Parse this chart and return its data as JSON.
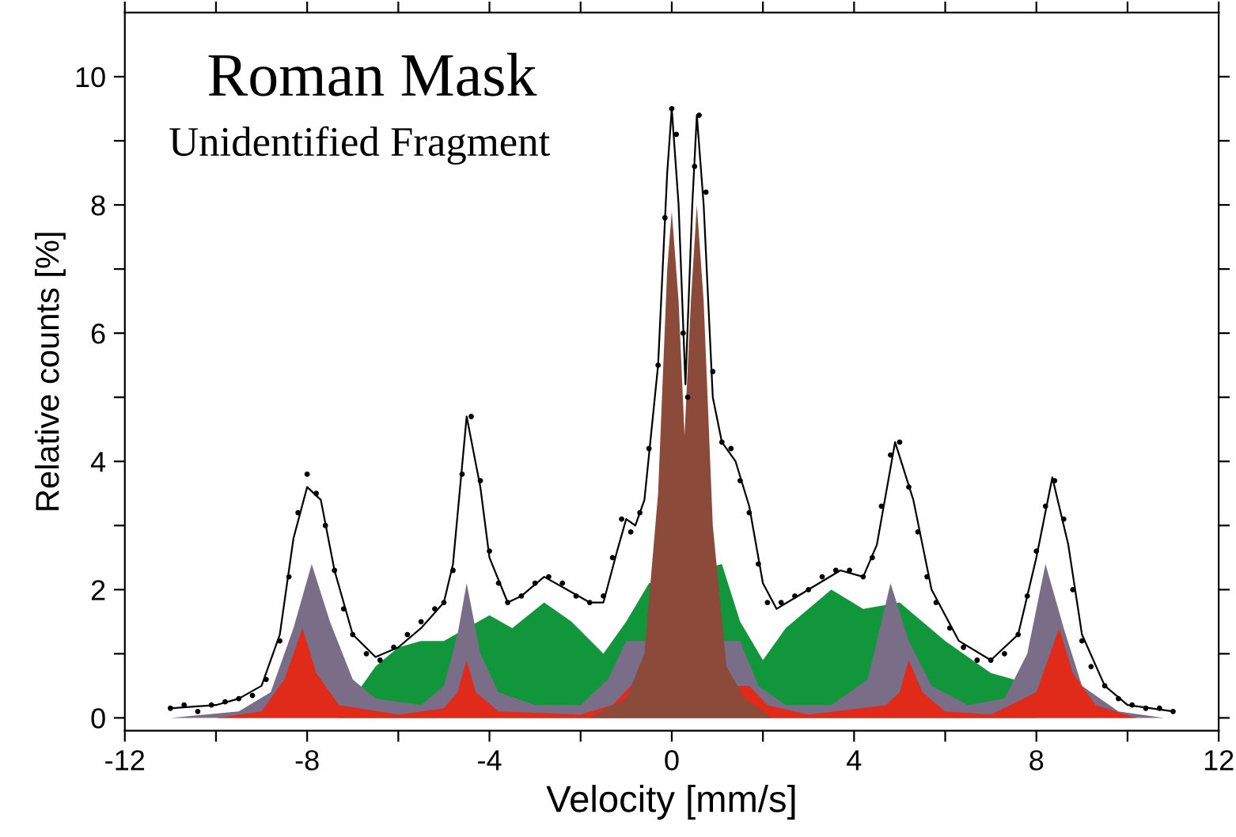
{
  "chart_data": {
    "type": "area",
    "xlabel": "Velocity [mm/s]",
    "ylabel": "Relative counts [%]",
    "annotations": [
      "Roman Mask",
      "Unidentified Fragment"
    ],
    "xlim": [
      -12,
      12
    ],
    "ylim": [
      -0.2,
      11
    ],
    "xticks": [
      -12,
      {
        "value": -10,
        "label": null
      },
      -8,
      {
        "value": -6,
        "label": null
      },
      -4,
      {
        "value": -2,
        "label": null
      },
      0,
      {
        "value": 2,
        "label": null
      },
      4,
      {
        "value": 6,
        "label": null
      },
      8,
      {
        "value": 10,
        "label": null
      },
      12
    ],
    "yticks": [
      0,
      {
        "value": 1,
        "label": null
      },
      2,
      {
        "value": 3,
        "label": null
      },
      4,
      {
        "value": 5,
        "label": null
      },
      6,
      {
        "value": 7,
        "label": null
      },
      8,
      {
        "value": 9,
        "label": null
      },
      10
    ],
    "grid": false,
    "legend": false,
    "series": [
      {
        "color": "#12963c",
        "x": [
          -7.3,
          -6.5,
          -6.0,
          -5.5,
          -5.0,
          -4.0,
          -3.5,
          -2.8,
          -2.2,
          -1.5,
          -1.0,
          -0.5,
          1.1,
          1.5,
          2.0,
          2.5,
          3.5,
          4.2,
          5.0,
          6.0,
          7.0,
          7.5,
          8.0
        ],
        "values": [
          0,
          0.8,
          1.1,
          1.2,
          1.2,
          1.6,
          1.4,
          1.8,
          1.5,
          1.0,
          1.5,
          2.1,
          2.4,
          1.5,
          0.9,
          1.4,
          2.0,
          1.7,
          1.8,
          1.2,
          0.7,
          0.6,
          0
        ]
      },
      {
        "color": "#7a6d88",
        "x": [
          -11.0,
          -9.5,
          -8.8,
          -8.3,
          -7.9,
          -7.5,
          -7.0,
          -6.5,
          -5.5,
          -5.0,
          -4.7,
          -4.5,
          -4.2,
          -3.8,
          -3.0,
          -2.0,
          -1.4,
          -1.0,
          1.5,
          1.9,
          2.5,
          3.5,
          4.3,
          4.8,
          5.2,
          5.7,
          6.5,
          7.3,
          7.8,
          8.2,
          8.6,
          9.0,
          9.8,
          10.8
        ],
        "values": [
          0,
          0.1,
          0.4,
          1.4,
          2.4,
          1.5,
          0.6,
          0.3,
          0.2,
          0.5,
          1.3,
          2.1,
          1.0,
          0.4,
          0.2,
          0.2,
          0.6,
          1.2,
          1.2,
          0.5,
          0.2,
          0.2,
          0.6,
          2.1,
          1.2,
          0.5,
          0.2,
          0.3,
          1.0,
          2.4,
          1.4,
          0.5,
          0.1,
          0
        ]
      },
      {
        "color": "#e02a1a",
        "x": [
          -10.0,
          -9.0,
          -8.5,
          -8.1,
          -7.8,
          -7.3,
          -6.0,
          -5.0,
          -4.7,
          -4.5,
          -4.3,
          -3.8,
          -2.0,
          -1.3,
          -0.9,
          1.7,
          2.1,
          3.0,
          4.7,
          5.0,
          5.2,
          5.5,
          6.0,
          7.0,
          8.0,
          8.5,
          8.8,
          9.3,
          10.2
        ],
        "values": [
          0,
          0.1,
          0.6,
          1.4,
          0.7,
          0.2,
          0.05,
          0.15,
          0.4,
          0.9,
          0.4,
          0.1,
          0.05,
          0.2,
          0.5,
          0.5,
          0.2,
          0.05,
          0.2,
          0.4,
          0.9,
          0.4,
          0.1,
          0.05,
          0.4,
          1.4,
          0.7,
          0.2,
          0
        ]
      },
      {
        "color": "#8b4a3a",
        "x": [
          -1.8,
          -1.0,
          -0.6,
          -0.3,
          -0.1,
          0.0,
          0.15,
          0.28,
          0.42,
          0.55,
          0.7,
          0.9,
          1.2,
          1.6,
          2.2
        ],
        "values": [
          0,
          0.3,
          1.0,
          3.5,
          7.0,
          7.9,
          6.5,
          4.4,
          6.5,
          8.0,
          6.5,
          3.0,
          0.8,
          0.3,
          0
        ]
      },
      {
        "type": "line",
        "color": "#000000",
        "marker": "none",
        "line_style": "solid",
        "x": [
          -11.0,
          -10.0,
          -9.5,
          -9.0,
          -8.6,
          -8.3,
          -8.0,
          -7.7,
          -7.4,
          -7.0,
          -6.5,
          -6.0,
          -5.5,
          -5.0,
          -4.8,
          -4.5,
          -4.2,
          -4.0,
          -3.6,
          -3.3,
          -2.8,
          -2.3,
          -1.8,
          -1.5,
          -1.2,
          -1.0,
          -0.8,
          -0.6,
          -0.3,
          -0.1,
          0.0,
          0.15,
          0.3,
          0.45,
          0.55,
          0.7,
          0.9,
          1.1,
          1.4,
          1.7,
          2.0,
          2.3,
          3.0,
          3.7,
          4.2,
          4.5,
          4.9,
          5.3,
          5.7,
          6.3,
          7.0,
          7.6,
          8.0,
          8.35,
          8.7,
          9.0,
          9.5,
          10.0,
          11.0
        ],
        "values": [
          0.15,
          0.2,
          0.3,
          0.5,
          1.3,
          2.8,
          3.6,
          3.4,
          2.3,
          1.3,
          0.95,
          1.1,
          1.4,
          1.8,
          2.4,
          4.7,
          3.6,
          2.5,
          1.8,
          1.9,
          2.2,
          2.0,
          1.8,
          1.8,
          2.6,
          3.1,
          3.0,
          3.4,
          5.5,
          8.5,
          9.5,
          8.0,
          5.2,
          8.0,
          9.4,
          8.0,
          5.0,
          4.3,
          4.0,
          3.3,
          2.1,
          1.7,
          2.0,
          2.3,
          2.2,
          2.7,
          4.3,
          3.4,
          2.0,
          1.2,
          0.9,
          1.3,
          2.5,
          3.75,
          2.7,
          1.3,
          0.5,
          0.2,
          0.1
        ]
      },
      {
        "type": "scatter",
        "color": "#000000",
        "marker": "circle",
        "x": [
          -11.0,
          -10.7,
          -10.4,
          -10.1,
          -9.8,
          -9.5,
          -9.2,
          -8.9,
          -8.6,
          -8.4,
          -8.2,
          -8.0,
          -7.8,
          -7.6,
          -7.4,
          -7.2,
          -7.0,
          -6.7,
          -6.4,
          -6.1,
          -5.8,
          -5.5,
          -5.2,
          -5.0,
          -4.8,
          -4.6,
          -4.4,
          -4.2,
          -4.0,
          -3.8,
          -3.6,
          -3.3,
          -3.0,
          -2.7,
          -2.4,
          -2.1,
          -1.8,
          -1.5,
          -1.3,
          -1.1,
          -0.9,
          -0.7,
          -0.5,
          -0.3,
          -0.15,
          0.0,
          0.1,
          0.25,
          0.35,
          0.5,
          0.6,
          0.75,
          0.9,
          1.1,
          1.3,
          1.5,
          1.7,
          1.9,
          2.1,
          2.4,
          2.7,
          3.0,
          3.3,
          3.6,
          3.9,
          4.2,
          4.4,
          4.6,
          4.8,
          5.0,
          5.2,
          5.4,
          5.6,
          5.8,
          6.1,
          6.4,
          6.7,
          7.0,
          7.3,
          7.6,
          7.8,
          8.0,
          8.2,
          8.4,
          8.6,
          8.8,
          9.0,
          9.2,
          9.5,
          9.8,
          10.1,
          10.4,
          10.7,
          11.0
        ],
        "values": [
          0.15,
          0.2,
          0.1,
          0.2,
          0.25,
          0.3,
          0.35,
          0.6,
          1.2,
          2.2,
          3.2,
          3.8,
          3.5,
          3.0,
          2.3,
          1.7,
          1.3,
          1.0,
          0.9,
          1.1,
          1.3,
          1.5,
          1.7,
          1.8,
          2.3,
          3.8,
          4.7,
          3.7,
          2.6,
          2.1,
          1.8,
          1.9,
          2.1,
          2.2,
          2.1,
          1.9,
          1.8,
          1.9,
          2.5,
          3.1,
          2.9,
          3.2,
          4.2,
          5.5,
          7.8,
          9.5,
          9.1,
          6.0,
          5.0,
          8.6,
          9.4,
          8.2,
          5.4,
          4.3,
          4.2,
          3.7,
          3.2,
          2.4,
          1.8,
          1.8,
          1.9,
          2.0,
          2.2,
          2.3,
          2.3,
          2.2,
          2.5,
          3.3,
          4.1,
          4.3,
          3.6,
          2.9,
          2.2,
          1.8,
          1.4,
          1.1,
          0.9,
          0.9,
          1.0,
          1.3,
          1.9,
          2.6,
          3.3,
          3.7,
          3.1,
          2.0,
          1.2,
          0.8,
          0.5,
          0.3,
          0.2,
          0.15,
          0.15,
          0.1
        ]
      }
    ]
  }
}
